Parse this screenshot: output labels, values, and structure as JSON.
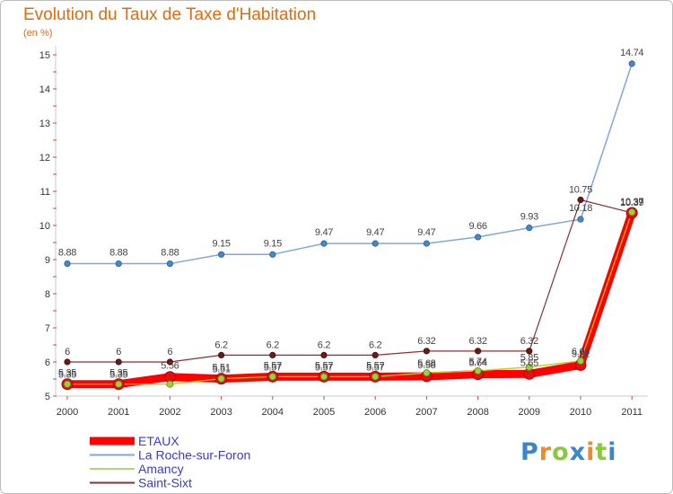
{
  "chart_data": {
    "type": "line",
    "title": "Evolution du Taux de Taxe d'Habitation",
    "subtitle": "(en %)",
    "x": [
      "2000",
      "2001",
      "2002",
      "2003",
      "2004",
      "2005",
      "2006",
      "2007",
      "2008",
      "2009",
      "2010",
      "2011"
    ],
    "ylim": [
      5,
      15
    ],
    "yticks": [
      5,
      6,
      7,
      8,
      9,
      10,
      11,
      12,
      13,
      14,
      15
    ],
    "grid": false,
    "legend_position": "bottom-left",
    "series": [
      {
        "name": "ETAUX",
        "color": "#ff0000",
        "values": [
          5.35,
          5.35,
          5.56,
          5.51,
          5.57,
          5.57,
          5.57,
          5.58,
          5.64,
          5.65,
          5.91,
          10.37
        ],
        "labels": [
          "5.35",
          "5.35",
          "5.56",
          "5.51",
          "5.57",
          "5.57",
          "5.57",
          "5.58",
          "5.64",
          "5.65",
          "5.91",
          "10.37"
        ]
      },
      {
        "name": "La Roche-sur-Foron",
        "color": "#7fa8d8",
        "values": [
          8.88,
          8.88,
          8.88,
          9.15,
          9.15,
          9.47,
          9.47,
          9.47,
          9.66,
          9.93,
          10.18,
          14.74
        ],
        "labels": [
          "8.88",
          "8.88",
          "8.88",
          "9.15",
          "9.15",
          "9.47",
          "9.47",
          "9.47",
          "9.66",
          "9.93",
          "10.18",
          "14.74"
        ]
      },
      {
        "name": "Amancy",
        "color": "#a8dc6c",
        "values": [
          5.35,
          5.35,
          5.35,
          5.51,
          5.57,
          5.57,
          5.57,
          5.68,
          5.74,
          5.85,
          6.03,
          10.39
        ],
        "labels": [
          "5.35",
          "5.35",
          "",
          "5.51",
          "5.57",
          "5.57",
          "5.57",
          "5.68",
          "5.74",
          "5.85",
          "6.03",
          "10.39"
        ]
      },
      {
        "name": "Saint-Sixt",
        "color": "#8b2f2f",
        "values": [
          6,
          6,
          6,
          6.2,
          6.2,
          6.2,
          6.2,
          6.32,
          6.32,
          6.32,
          10.75,
          10.37
        ],
        "labels": [
          "6",
          "6",
          "6",
          "6.2",
          "6.2",
          "6.2",
          "6.2",
          "6.32",
          "6.32",
          "6.32",
          "10.75",
          "10.37"
        ]
      }
    ]
  },
  "logo": {
    "letters": [
      "P",
      "r",
      "o",
      "x",
      "i",
      "t",
      "i"
    ],
    "colors": [
      "#3b86c8",
      "#f08a24",
      "#8dc63f",
      "#3b86c8",
      "#f08a24",
      "#8dc63f",
      "#3b86c8"
    ]
  }
}
